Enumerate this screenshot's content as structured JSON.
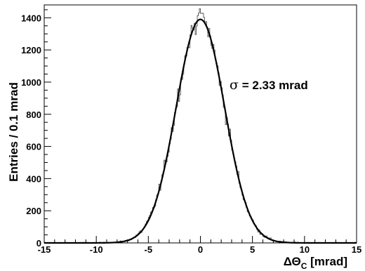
{
  "chart_data": {
    "type": "histogram",
    "xlabel": "ΔΘ",
    "xlabel_sub": "C",
    "xlabel_unit": " [mrad]",
    "ylabel": "Entries / 0.1 mrad",
    "annotation_symbol": "σ",
    "annotation_text": " = 2.33 mrad",
    "xlim": [
      -15,
      15
    ],
    "ylim": [
      0,
      1480
    ],
    "x_ticks": [
      -15,
      -10,
      -5,
      0,
      5,
      10,
      15
    ],
    "y_ticks": [
      0,
      200,
      400,
      600,
      800,
      1000,
      1200,
      1400
    ],
    "bin_width": 0.1,
    "fit": {
      "function": "gaussian",
      "mean": 0.0,
      "sigma": 2.33,
      "amplitude": 1390
    },
    "histogram_peak": 1440,
    "series": [
      {
        "style": "histogram"
      },
      {
        "style": "fit-curve"
      }
    ]
  }
}
